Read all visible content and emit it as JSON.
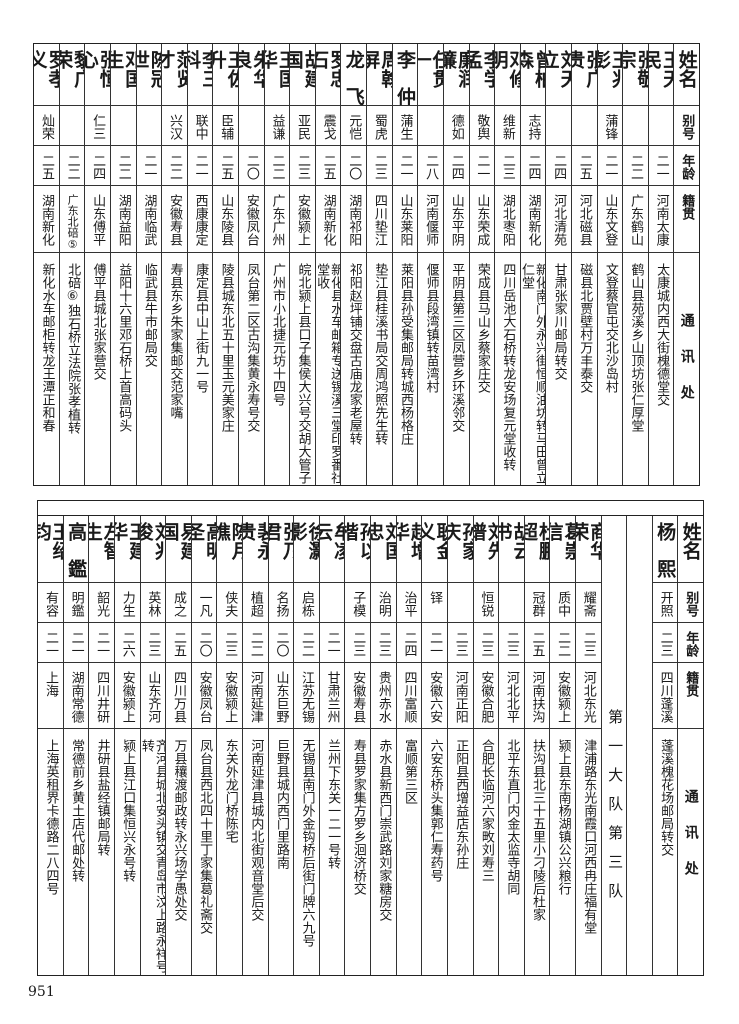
{
  "header": {
    "name": "姓名",
    "alias": "别号",
    "age": "年龄",
    "origin": "籍贯",
    "address": "通讯处"
  },
  "top_table": {
    "rows": [
      {
        "name": "王天民",
        "alias": "",
        "age": "二一",
        "origin": "河南太康",
        "address": "太康城内西大街槐德堂交"
      },
      {
        "name": "张敬宗",
        "note": "③",
        "alias": "",
        "age": "二二",
        "origin": "广东鹤山",
        "address": "鹤山县苑溪乡山顶坊张仁厚堂"
      },
      {
        "name": "王兆彭",
        "alias": "蒲锋",
        "age": "二一",
        "origin": "山东文登",
        "address": "文登蔡官屯交北沙岛村"
      },
      {
        "name": "张广贵",
        "alias": "",
        "age": "二五",
        "origin": "河北磁县",
        "address": "磁县北贾壁村万丰泰交"
      },
      {
        "name": "刘天立",
        "alias": "",
        "age": "二四",
        "origin": "河北清苑",
        "address": "甘肃张家川邮局转交"
      },
      {
        "name": "曾柏森",
        "alias": "志持",
        "age": "二四",
        "origin": "湖南新化",
        "address": "新化南门外永兴街恒顺油坊转马田曾立仁堂"
      },
      {
        "name": "邓修明",
        "alias": "维新",
        "age": "二三",
        "origin": "湖北枣阳",
        "address": "四川岳池大石桥转龙安场复元堂收转"
      },
      {
        "name": "李学孟",
        "alias": "敬舆",
        "age": "二一",
        "origin": "山东荣成",
        "address": "荣成县马山乡蔡家庄交"
      },
      {
        "name": "廉润簾",
        "alias": "德如",
        "age": "二四",
        "origin": "山东平阴",
        "address": "平阴县第三区凤营乡环溪邻交"
      },
      {
        "name": "任贯一",
        "alias": "",
        "age": "二八",
        "origin": "河南偃师",
        "address": "偃师县段湾镇转苗湾村"
      },
      {
        "name": "李仲",
        "alias": "蒲生",
        "age": "二一",
        "origin": "山东莱阳",
        "address": "莱阳县孙受集邮局转城西杨格庄"
      },
      {
        "name": "周翰屏",
        "alias": "蜀虎",
        "age": "二三",
        "origin": "四川垫江",
        "address": "垫江县桂溪书局交周鸿照先生转"
      },
      {
        "name": "龙飞",
        "alias": "元恺",
        "age": "二〇",
        "origin": "湖南祁阳",
        "address": "祁阳赵坪铺交盘古庙龙家老屋转"
      },
      {
        "name": "罗忠石",
        "alias": "震戈",
        "age": "二五",
        "origin": "湖南新化",
        "address": "新化县水车邮箱专送锡溪三堂印罗番社堂收"
      },
      {
        "name": "胡建国",
        "alias": "亚民",
        "age": "二三",
        "origin": "安徽颍上",
        "address": "皖北颍上县口子集侯大兴号交胡大管子"
      },
      {
        "name": "王国华",
        "alias": "益谦",
        "age": "二二",
        "origin": "广东广州",
        "address": "广州市小北捷元坊十四号"
      },
      {
        "name": "朱华良",
        "alias": "",
        "age": "二〇",
        "origin": "安徽凤台",
        "address": "凤台第二区古沟集黄永寿号交"
      },
      {
        "name": "王佐升",
        "alias": "臣辅",
        "age": "二五",
        "origin": "山东陵县",
        "address": "陵县城东北五十里玉元美家庄"
      },
      {
        "name": "李三科",
        "alias": "联中",
        "age": "二一",
        "origin": "西康康定",
        "address": "康定县中山上街九一号"
      },
      {
        "name": "范贤才",
        "alias": "兴汉",
        "age": "二二",
        "origin": "安徽寿县",
        "address": "寿县东乡朱家集邮交范家嘴"
      },
      {
        "name": "陈冠世",
        "alias": "",
        "age": "二一",
        "origin": "湖南临武",
        "address": "临武县牛市邮局交"
      },
      {
        "name": "邓国生",
        "alias": "",
        "age": "二二",
        "origin": "湖南益阳",
        "address": "益阳十六里邓石桥上首高码头"
      },
      {
        "name": "张恒心",
        "alias": "仁三",
        "age": "二四",
        "origin": "山东傅平",
        "address": "傅平县城北张家营交"
      },
      {
        "name": "黎广荣",
        "note": "④",
        "alias": "",
        "age": "二二",
        "origin": "广东北碚⑤",
        "address": "北碚⑥独石桥立法院张孝植转"
      },
      {
        "name": "罗孝义",
        "alias": "灿荣",
        "age": "二五",
        "origin": "湖南新化",
        "address": "新化水车邮柜转龙王潭正和春"
      }
    ]
  },
  "bottom_table": {
    "division_label": "第一大队第三队",
    "rows_before": [
      {
        "name": "杨熙",
        "alias": "开照",
        "age": "二三",
        "origin": "四川蓬溪",
        "address": "蓬溪槐花场邮局转交"
      }
    ],
    "rows": [
      {
        "name": "商华荣",
        "alias": "耀斋",
        "age": "二三",
        "origin": "河北东光",
        "address": "津浦路东光南霞口河西冉庄福有堂"
      },
      {
        "name": "葛崇信",
        "alias": "质中",
        "age": "二二",
        "origin": "安徽颍上",
        "address": "颍上县东南杨湖镇公兴粮行"
      },
      {
        "name": "杜鹏超",
        "alias": "冠群",
        "age": "二五",
        "origin": "河南扶沟",
        "address": "扶沟县北三十五里小刁陵后杜家"
      },
      {
        "name": "胡云书",
        "alias": "",
        "age": "二三",
        "origin": "河北北平",
        "address": "北平东直门内金太监寺胡同"
      },
      {
        "name": "刘先谱",
        "alias": "恒锐",
        "age": "二三",
        "origin": "安徽合肥",
        "address": "合肥长临河六家畋刘寿三"
      },
      {
        "name": "孙家庆",
        "alias": "",
        "age": "二三",
        "origin": "河南正阳",
        "address": "正阳县西增益店东孙庄"
      },
      {
        "name": "耿金义",
        "alias": "铎",
        "age": "二一",
        "origin": "安徽六安",
        "address": "六安东桥头集郭仁寿药号"
      },
      {
        "name": "赵增华",
        "alias": "治平",
        "age": "二四",
        "origin": "四川富顺",
        "address": "富顺第三区"
      },
      {
        "name": "刘国忠",
        "alias": "治明",
        "age": "二三",
        "origin": "贵州赤水",
        "address": "赤水县新西门崇武路刘家糖房交"
      },
      {
        "name": "孙以楷",
        "alias": "子模",
        "age": "二三",
        "origin": "安徽寿县",
        "address": "寿县罗家集方罗乡洄济桥交"
      },
      {
        "name": "牟凌云",
        "alias": "",
        "age": "二一",
        "origin": "甘肃兰州",
        "address": "兰州下东关一二一号转"
      },
      {
        "name": "徐灏影",
        "alias": "启栋",
        "age": "二二",
        "origin": "江苏无锡",
        "address": "无锡县南门外金钩桥后街门牌六九号"
      },
      {
        "name": "张乃君",
        "alias": "名扬",
        "age": "二〇",
        "origin": "山东巨野",
        "address": "巨野县城内西门里路南"
      },
      {
        "name": "裴永贵",
        "alias": "植超",
        "age": "二二",
        "origin": "河南延津",
        "address": "河南延津县城内北街观音堂后交"
      },
      {
        "name": "陈月樵",
        "alias": "侠夫",
        "age": "二三",
        "origin": "安徽颍上",
        "address": "东关外龙门桥陈宅"
      },
      {
        "name": "高明圣",
        "alias": "一凡",
        "age": "二〇",
        "origin": "安徽凤台",
        "address": "凤台县西北四十里丁家集葛礼斋交"
      },
      {
        "name": "易建国",
        "alias": "成之",
        "age": "二五",
        "origin": "四川万县",
        "address": "万县穰渡邮政转永兴场学愚处交"
      },
      {
        "name": "刘兆俊",
        "alias": "英林",
        "age": "二三",
        "origin": "山东齐河",
        "address": "齐河县城北安头镇交青岛市汶上路永祥号转"
      },
      {
        "name": "王建华",
        "alias": "力生",
        "age": "二六",
        "origin": "安徽颍上",
        "address": "颍上县江口集恒兴永号转"
      },
      {
        "name": "左智生",
        "alias": "韶光",
        "age": "二一",
        "origin": "四川井研",
        "address": "井研县盐经镇邮局转"
      },
      {
        "name": "高鑑",
        "alias": "明鑑",
        "age": "二一",
        "origin": "湖南常德",
        "address": "常德前乡黄土店代邮处转"
      },
      {
        "name": "王绍钧",
        "alias": "有容",
        "age": "二一",
        "origin": "上海",
        "address": "上海英租界卡德路二八四号"
      }
    ]
  },
  "page_number": "951"
}
